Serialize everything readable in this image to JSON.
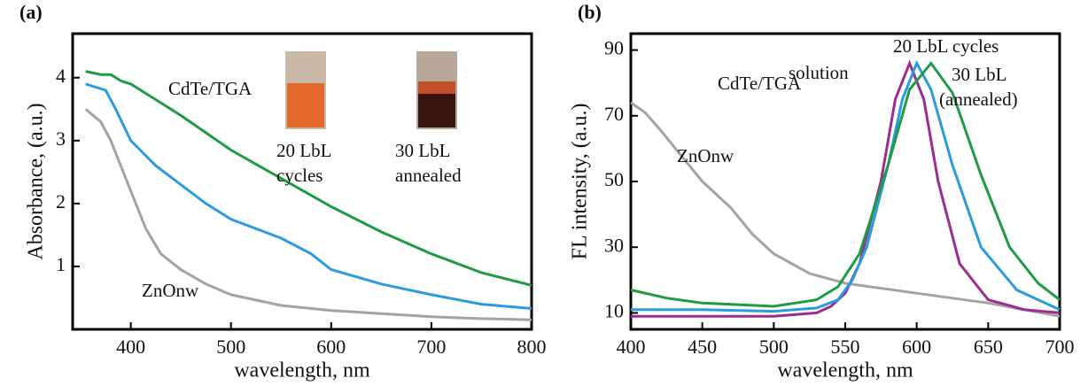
{
  "chart_data": [
    {
      "type": "line",
      "label": "(a)",
      "x_label": "wavelength, nm",
      "y_label": "Absorbance, (a.u.)",
      "xlim": [
        342,
        800
      ],
      "ylim": [
        0,
        4.7
      ],
      "xticks": [
        400,
        500,
        600,
        700,
        800
      ],
      "yticks": [
        1,
        2,
        3,
        4
      ],
      "series": [
        {
          "name": "ZnOnw",
          "color": "#a3a3a3",
          "x": [
            355,
            370,
            380,
            390,
            400,
            415,
            430,
            450,
            475,
            500,
            550,
            600,
            650,
            700,
            750,
            800
          ],
          "values": [
            3.5,
            3.3,
            3.0,
            2.6,
            2.2,
            1.6,
            1.2,
            0.95,
            0.72,
            0.55,
            0.38,
            0.3,
            0.25,
            0.2,
            0.17,
            0.15
          ]
        },
        {
          "name": "20 LbL cycles",
          "color": "#2b9be0",
          "x": [
            355,
            365,
            375,
            385,
            400,
            425,
            450,
            475,
            500,
            550,
            580,
            600,
            650,
            700,
            750,
            800
          ],
          "values": [
            3.9,
            3.85,
            3.8,
            3.5,
            3.0,
            2.6,
            2.3,
            2.0,
            1.75,
            1.45,
            1.2,
            0.95,
            0.72,
            0.55,
            0.4,
            0.33
          ]
        },
        {
          "name": "30 LbL annealed",
          "color": "#1f9a45",
          "x": [
            355,
            370,
            380,
            390,
            400,
            425,
            450,
            500,
            550,
            600,
            650,
            700,
            750,
            800
          ],
          "values": [
            4.1,
            4.05,
            4.05,
            3.95,
            3.9,
            3.65,
            3.4,
            2.85,
            2.4,
            1.95,
            1.55,
            1.2,
            0.9,
            0.7
          ]
        }
      ],
      "annotations": [
        {
          "text": "CdTe/TGA",
          "color": "#111111"
        },
        {
          "text": "20 LbL",
          "color": "#2b9be0"
        },
        {
          "text": "cycles",
          "color": "#2b9be0"
        },
        {
          "text": "30 LbL",
          "color": "#1f9a45"
        },
        {
          "text": "annealed",
          "color": "#1f9a45"
        },
        {
          "text": "ZnOnw",
          "color": "#a3a3a3"
        }
      ]
    },
    {
      "type": "line",
      "label": "(b)",
      "x_label": "wavelength, nm",
      "y_label": "FL intensity, (a.u.)",
      "xlim": [
        400,
        700
      ],
      "ylim": [
        5,
        95
      ],
      "xticks": [
        400,
        450,
        500,
        550,
        600,
        650,
        700
      ],
      "yticks": [
        10,
        30,
        50,
        70,
        90
      ],
      "series": [
        {
          "name": "ZnOnw",
          "color": "#a3a3a3",
          "x": [
            400,
            410,
            420,
            435,
            450,
            470,
            485,
            500,
            525,
            550,
            600,
            650,
            700
          ],
          "values": [
            74,
            71,
            66,
            58,
            50,
            42,
            34,
            28,
            22,
            19,
            16,
            13,
            9
          ]
        },
        {
          "name": "solution",
          "color": "#9b2d91",
          "x": [
            400,
            450,
            500,
            530,
            540,
            550,
            560,
            575,
            585,
            595,
            605,
            615,
            630,
            650,
            675,
            700
          ],
          "values": [
            9,
            9,
            9,
            10,
            12,
            16,
            25,
            50,
            75,
            86,
            75,
            50,
            25,
            14,
            11,
            10
          ]
        },
        {
          "name": "20 LbL cycles",
          "color": "#2b9be0",
          "x": [
            400,
            450,
            500,
            530,
            545,
            555,
            565,
            580,
            590,
            600,
            610,
            625,
            645,
            670,
            700
          ],
          "values": [
            11,
            11,
            10.5,
            11.5,
            14,
            20,
            30,
            55,
            75,
            86,
            78,
            55,
            30,
            17,
            11
          ]
        },
        {
          "name": "30 LbL (annealed)",
          "color": "#1f9a45",
          "x": [
            400,
            425,
            450,
            500,
            530,
            545,
            560,
            580,
            595,
            610,
            625,
            645,
            665,
            685,
            700
          ],
          "values": [
            17,
            14.5,
            13,
            12,
            14,
            18,
            28,
            55,
            78,
            86,
            77,
            52,
            30,
            19,
            14
          ]
        }
      ],
      "annotations": [
        {
          "text": "CdTe/TGA",
          "color": "#111111"
        },
        {
          "text": "ZnOnw",
          "color": "#a3a3a3"
        },
        {
          "text": "solution",
          "color": "#9b2d91"
        },
        {
          "text": "20 LbL cycles",
          "color": "#2b9be0"
        },
        {
          "text": "30 LbL",
          "color": "#1f9a45"
        },
        {
          "text": "(annealed)",
          "color": "#1f9a45"
        }
      ]
    }
  ]
}
